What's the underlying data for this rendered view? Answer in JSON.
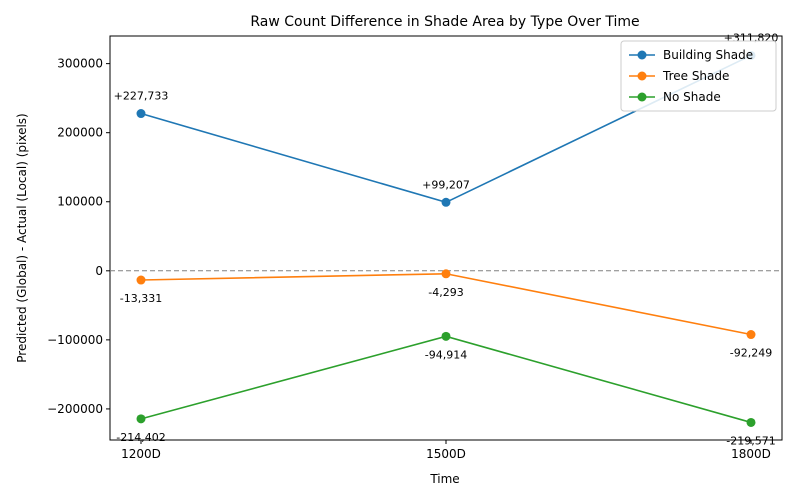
{
  "chart_data": {
    "type": "line",
    "title": "Raw Count Difference in Shade Area by Type Over Time",
    "xlabel": "Time",
    "ylabel": "Predicted (Global) - Actual (Local) (pixels)",
    "categories": [
      "1200D",
      "1500D",
      "1800D"
    ],
    "ylim": [
      -245000,
      340000
    ],
    "yticks": [
      -200000,
      -100000,
      0,
      100000,
      200000,
      300000
    ],
    "ytick_labels": [
      "−200000",
      "−100000",
      "0",
      "100000",
      "200000",
      "300000"
    ],
    "zero_line": true,
    "grid": false,
    "legend_position": "top-right",
    "series": [
      {
        "name": "Building Shade",
        "color": "#1f77b4",
        "values": [
          227733,
          99207,
          311820
        ],
        "labels": [
          "+227,733",
          "+99,207",
          "+311,820"
        ],
        "label_side": "above"
      },
      {
        "name": "Tree Shade",
        "color": "#ff7f0e",
        "values": [
          -13331,
          -4293,
          -92249
        ],
        "labels": [
          "-13,331",
          "-4,293",
          "-92,249"
        ],
        "label_side": "below"
      },
      {
        "name": "No Shade",
        "color": "#2ca02c",
        "values": [
          -214402,
          -94914,
          -219571
        ],
        "labels": [
          "-214,402",
          "-94,914",
          "-219,571"
        ],
        "label_side": "below"
      }
    ]
  }
}
